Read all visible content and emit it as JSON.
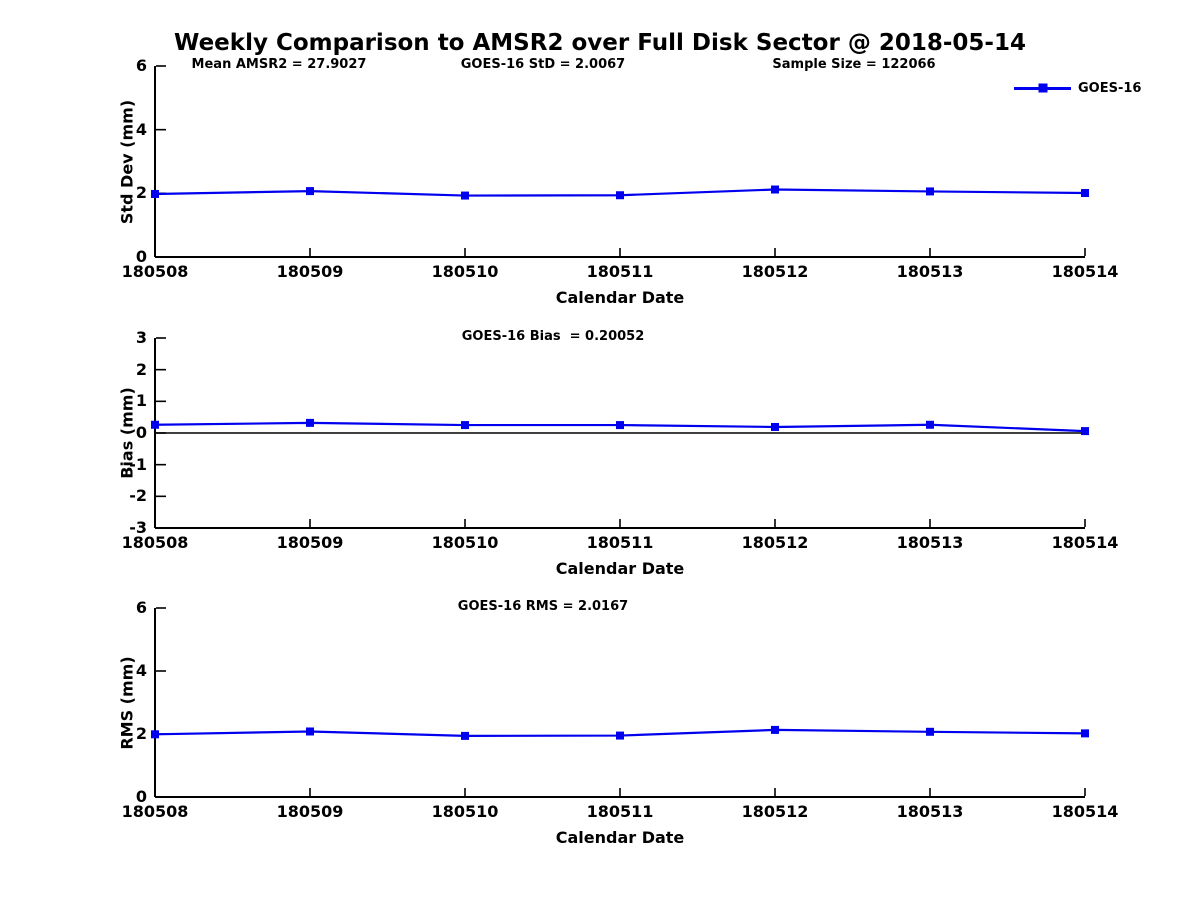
{
  "title": "Weekly Comparison to AMSR2 over Full Disk Sector @ 2018-05-14",
  "legend": {
    "label": "GOES-16"
  },
  "colors": {
    "series": "#0000ee",
    "axis": "#000000",
    "background": "#ffffff"
  },
  "chart_data": [
    {
      "type": "line",
      "name": "std-dev-vs-date",
      "categories": [
        "180508",
        "180509",
        "180510",
        "180511",
        "180512",
        "180513",
        "180514"
      ],
      "series": [
        {
          "name": "GOES-16",
          "values": [
            1.98,
            2.07,
            1.93,
            1.94,
            2.12,
            2.06,
            2.01
          ]
        }
      ],
      "xlabel": "Calendar Date",
      "ylabel": "Std Dev (mm)",
      "ylim": [
        0,
        6
      ],
      "yticks": [
        0,
        2,
        4,
        6
      ],
      "zero_line": false,
      "grid": false,
      "legend_position": "top-right-outside",
      "annotations": [
        "Mean AMSR2 = 27.9027",
        "GOES-16 StD = 2.0067",
        "Sample Size = 122066"
      ]
    },
    {
      "type": "line",
      "name": "bias-vs-date",
      "categories": [
        "180508",
        "180509",
        "180510",
        "180511",
        "180512",
        "180513",
        "180514"
      ],
      "series": [
        {
          "name": "GOES-16",
          "values": [
            0.26,
            0.32,
            0.25,
            0.25,
            0.19,
            0.26,
            0.06
          ]
        }
      ],
      "xlabel": "Calendar Date",
      "ylabel": "Bias (mm)",
      "ylim": [
        -3,
        3
      ],
      "yticks": [
        -3,
        -2,
        -1,
        0,
        1,
        2,
        3
      ],
      "zero_line": true,
      "grid": false,
      "annotations": [
        "GOES-16 Bias  = 0.20052"
      ]
    },
    {
      "type": "line",
      "name": "rms-vs-date",
      "categories": [
        "180508",
        "180509",
        "180510",
        "180511",
        "180512",
        "180513",
        "180514"
      ],
      "series": [
        {
          "name": "GOES-16",
          "values": [
            1.99,
            2.08,
            1.94,
            1.95,
            2.13,
            2.07,
            2.02
          ]
        }
      ],
      "xlabel": "Calendar Date",
      "ylabel": "RMS (mm)",
      "ylim": [
        0,
        6
      ],
      "yticks": [
        0,
        2,
        4,
        6
      ],
      "zero_line": false,
      "grid": false,
      "annotations": [
        "GOES-16 RMS = 2.0167"
      ]
    }
  ]
}
